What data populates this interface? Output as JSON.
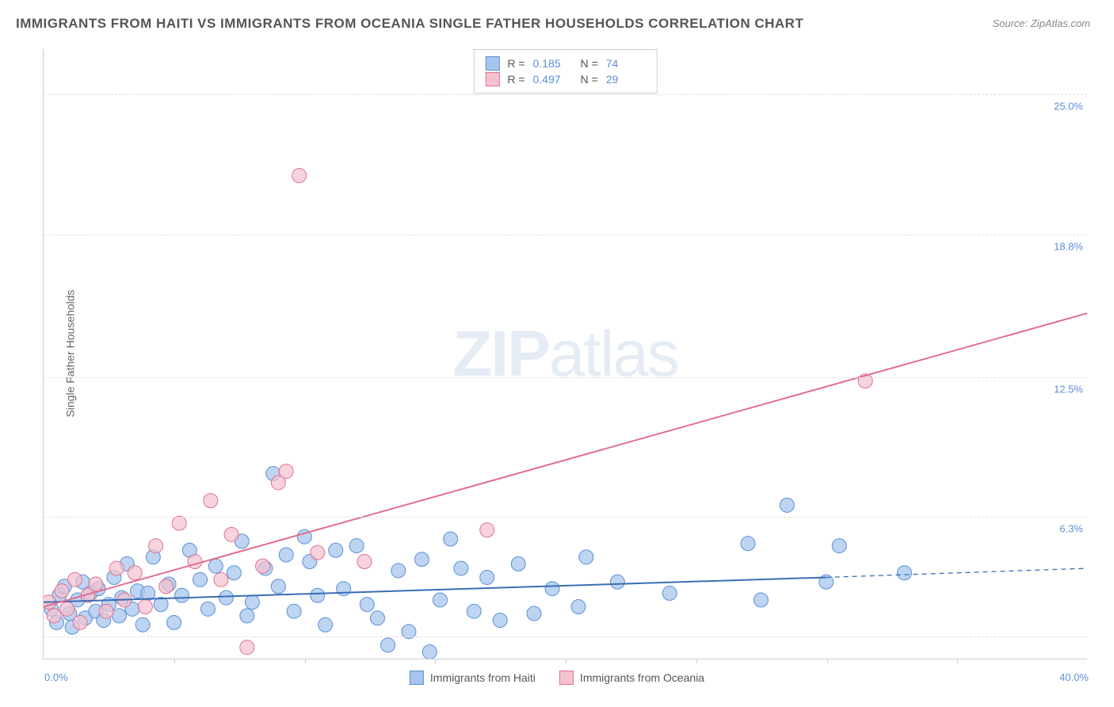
{
  "title": "IMMIGRANTS FROM HAITI VS IMMIGRANTS FROM OCEANIA SINGLE FATHER HOUSEHOLDS CORRELATION CHART",
  "source": "Source: ZipAtlas.com",
  "ylabel": "Single Father Households",
  "watermark": {
    "zip": "ZIP",
    "atlas": "atlas"
  },
  "x_axis": {
    "min": 0.0,
    "max": 40.0,
    "min_label": "0.0%",
    "max_label": "40.0%",
    "tick_step": 5.0
  },
  "y_axis": {
    "min": 0.0,
    "max": 27.0,
    "gridlines": [
      {
        "value": 1.0,
        "label": null
      },
      {
        "value": 6.3,
        "label": "6.3%"
      },
      {
        "value": 12.5,
        "label": "12.5%"
      },
      {
        "value": 18.8,
        "label": "18.8%"
      },
      {
        "value": 25.0,
        "label": "25.0%"
      }
    ]
  },
  "r_legend": [
    {
      "swatch_fill": "#a7c6ed",
      "swatch_border": "#5b8fd6",
      "R": "0.185",
      "N": "74"
    },
    {
      "swatch_fill": "#f4c2cf",
      "swatch_border": "#e16f8f",
      "R": "0.497",
      "N": "29"
    }
  ],
  "bottom_legend": [
    {
      "label": "Immigrants from Haiti",
      "swatch_fill": "#a7c6ed",
      "swatch_border": "#5b8fd6"
    },
    {
      "label": "Immigrants from Oceania",
      "swatch_fill": "#f4c2cf",
      "swatch_border": "#e16f8f"
    }
  ],
  "series": [
    {
      "name": "Immigrants from Haiti",
      "marker_fill": "#a7c6ed",
      "marker_border": "#5b8fd6",
      "marker_radius": 9,
      "marker_opacity": 0.75,
      "line_color": "#3a6db5",
      "line_width": 2,
      "trend_x1": 0.0,
      "trend_y1": 2.5,
      "trend_x2": 30.0,
      "trend_y2": 3.6,
      "dashed_x2": 40.0,
      "dashed_y2": 4.0,
      "points": [
        [
          0.3,
          2.2
        ],
        [
          0.5,
          1.6
        ],
        [
          0.6,
          2.8
        ],
        [
          0.8,
          3.2
        ],
        [
          1.0,
          2.0
        ],
        [
          1.1,
          1.4
        ],
        [
          1.3,
          2.6
        ],
        [
          1.5,
          3.4
        ],
        [
          1.6,
          1.8
        ],
        [
          1.8,
          2.9
        ],
        [
          2.0,
          2.1
        ],
        [
          2.1,
          3.1
        ],
        [
          2.3,
          1.7
        ],
        [
          2.5,
          2.4
        ],
        [
          2.7,
          3.6
        ],
        [
          2.9,
          1.9
        ],
        [
          3.0,
          2.7
        ],
        [
          3.2,
          4.2
        ],
        [
          3.4,
          2.2
        ],
        [
          3.6,
          3.0
        ],
        [
          3.8,
          1.5
        ],
        [
          4.0,
          2.9
        ],
        [
          4.2,
          4.5
        ],
        [
          4.5,
          2.4
        ],
        [
          4.8,
          3.3
        ],
        [
          5.0,
          1.6
        ],
        [
          5.3,
          2.8
        ],
        [
          5.6,
          4.8
        ],
        [
          6.0,
          3.5
        ],
        [
          6.3,
          2.2
        ],
        [
          6.6,
          4.1
        ],
        [
          7.0,
          2.7
        ],
        [
          7.3,
          3.8
        ],
        [
          7.6,
          5.2
        ],
        [
          7.8,
          1.9
        ],
        [
          8.0,
          2.5
        ],
        [
          8.5,
          4.0
        ],
        [
          8.8,
          8.2
        ],
        [
          9.0,
          3.2
        ],
        [
          9.3,
          4.6
        ],
        [
          9.6,
          2.1
        ],
        [
          10.0,
          5.4
        ],
        [
          10.2,
          4.3
        ],
        [
          10.5,
          2.8
        ],
        [
          10.8,
          1.5
        ],
        [
          11.2,
          4.8
        ],
        [
          11.5,
          3.1
        ],
        [
          12.0,
          5.0
        ],
        [
          12.4,
          2.4
        ],
        [
          12.8,
          1.8
        ],
        [
          13.2,
          0.6
        ],
        [
          13.6,
          3.9
        ],
        [
          14.0,
          1.2
        ],
        [
          14.5,
          4.4
        ],
        [
          14.8,
          0.3
        ],
        [
          15.2,
          2.6
        ],
        [
          15.6,
          5.3
        ],
        [
          16.0,
          4.0
        ],
        [
          16.5,
          2.1
        ],
        [
          17.0,
          3.6
        ],
        [
          17.5,
          1.7
        ],
        [
          18.2,
          4.2
        ],
        [
          18.8,
          2.0
        ],
        [
          19.5,
          3.1
        ],
        [
          20.5,
          2.3
        ],
        [
          20.8,
          4.5
        ],
        [
          22.0,
          3.4
        ],
        [
          24.0,
          2.9
        ],
        [
          27.0,
          5.1
        ],
        [
          27.5,
          2.6
        ],
        [
          28.5,
          6.8
        ],
        [
          30.0,
          3.4
        ],
        [
          30.5,
          5.0
        ],
        [
          33.0,
          3.8
        ]
      ]
    },
    {
      "name": "Immigrants from Oceania",
      "marker_fill": "#f4c2cf",
      "marker_border": "#e16f8f",
      "marker_radius": 9,
      "marker_opacity": 0.7,
      "line_color": "#e16f8f",
      "line_width": 2,
      "trend_x1": 0.0,
      "trend_y1": 2.3,
      "trend_x2": 40.0,
      "trend_y2": 15.3,
      "points": [
        [
          0.2,
          2.5
        ],
        [
          0.4,
          1.9
        ],
        [
          0.7,
          3.0
        ],
        [
          0.9,
          2.2
        ],
        [
          1.2,
          3.5
        ],
        [
          1.4,
          1.6
        ],
        [
          1.7,
          2.8
        ],
        [
          2.0,
          3.3
        ],
        [
          2.4,
          2.1
        ],
        [
          2.8,
          4.0
        ],
        [
          3.1,
          2.6
        ],
        [
          3.5,
          3.8
        ],
        [
          3.9,
          2.3
        ],
        [
          4.3,
          5.0
        ],
        [
          4.7,
          3.2
        ],
        [
          5.2,
          6.0
        ],
        [
          5.8,
          4.3
        ],
        [
          6.4,
          7.0
        ],
        [
          6.8,
          3.5
        ],
        [
          7.2,
          5.5
        ],
        [
          7.8,
          0.5
        ],
        [
          8.4,
          4.1
        ],
        [
          9.0,
          7.8
        ],
        [
          9.3,
          8.3
        ],
        [
          9.8,
          21.4
        ],
        [
          10.5,
          4.7
        ],
        [
          12.3,
          4.3
        ],
        [
          17.0,
          5.7
        ],
        [
          31.5,
          12.3
        ]
      ]
    }
  ]
}
